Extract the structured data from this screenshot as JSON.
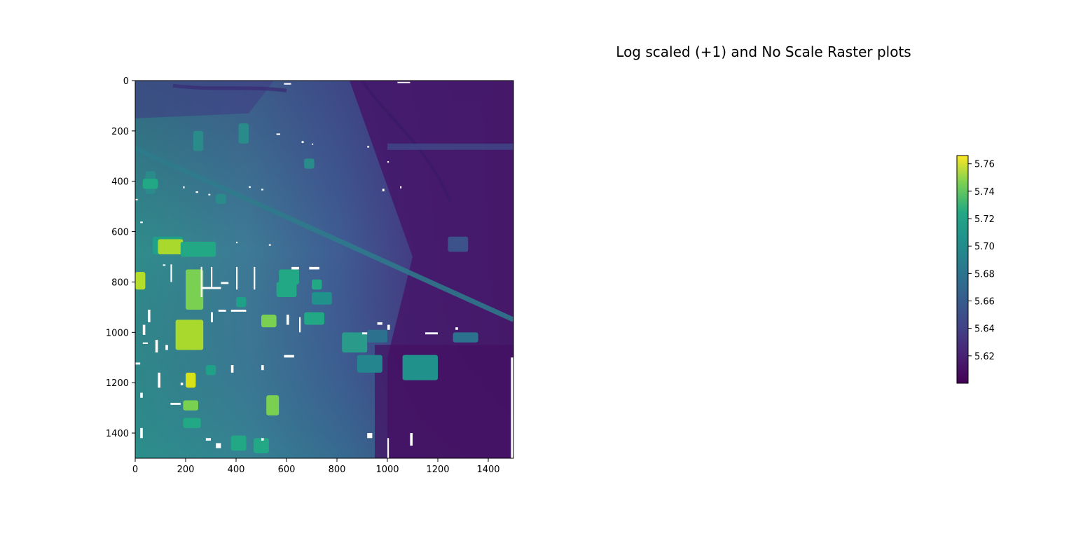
{
  "figure": {
    "title": "Log scaled (+1) and No Scale Raster plots"
  },
  "chart_data": {
    "type": "heatmap",
    "title": "",
    "xlabel": "",
    "ylabel": "",
    "xlim": [
      0,
      1500
    ],
    "ylim": [
      1500,
      0
    ],
    "x_ticks": [
      0,
      200,
      400,
      600,
      800,
      1000,
      1200,
      1400
    ],
    "y_ticks": [
      0,
      200,
      400,
      600,
      800,
      1000,
      1200,
      1400
    ],
    "colormap": "viridis",
    "colorbar": {
      "range": [
        5.6,
        5.766
      ],
      "ticks": [
        5.62,
        5.64,
        5.66,
        5.68,
        5.7,
        5.72,
        5.74,
        5.76
      ],
      "tick_labels": [
        "5.62",
        "5.64",
        "5.66",
        "5.68",
        "5.70",
        "5.72",
        "5.74",
        "5.76"
      ]
    },
    "colors": {
      "low": "#440154",
      "mid": "#31688e",
      "high": "#fde725"
    },
    "missing_value_color": "#ffffff"
  }
}
